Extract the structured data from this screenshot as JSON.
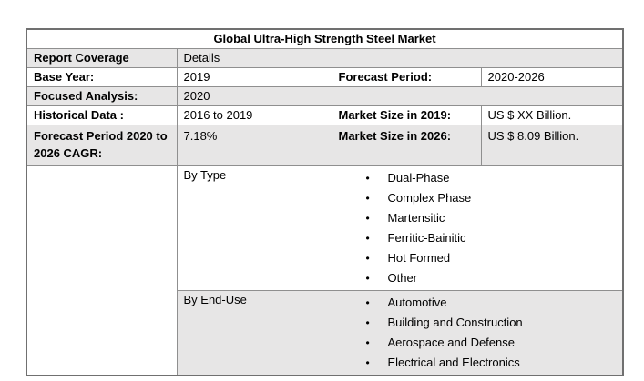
{
  "page": {
    "background": "#ffffff"
  },
  "table": {
    "title": "Global Ultra-High Strength Steel Market",
    "report_coverage": {
      "label": "Report Coverage",
      "value": "Details"
    },
    "base_year": {
      "label": "Base Year:",
      "value": "2019"
    },
    "forecast_period": {
      "label": "Forecast Period:",
      "value": "2020-2026"
    },
    "focused_analysis": {
      "label": "Focused Analysis:",
      "value": "2020"
    },
    "historical_data": {
      "label": "Historical Data :",
      "value": "2016 to 2019"
    },
    "market_size_2019": {
      "label": "Market Size in 2019:",
      "value": "US $ XX Billion."
    },
    "cagr": {
      "label": "Forecast Period 2020 to 2026 CAGR:",
      "value": "7.18%"
    },
    "market_size_2026": {
      "label": "Market Size in 2026:",
      "value": "US $ 8.09 Billion."
    },
    "segments": [
      {
        "label": "By Type",
        "items": [
          "Dual-Phase",
          "Complex Phase",
          "Martensitic",
          "Ferritic-Bainitic",
          "Hot Formed",
          "Other"
        ]
      },
      {
        "label": "By End-Use",
        "items": [
          "Automotive",
          "Building and Construction",
          "Aerospace and Defense",
          "Electrical and Electronics"
        ]
      }
    ],
    "bullet_glyph": "•",
    "colors": {
      "shaded_row": "#e7e6e6",
      "white_row": "#ffffff",
      "inner_border": "#8f8f8f",
      "outer_border": "#707070",
      "text": "#000000"
    }
  }
}
